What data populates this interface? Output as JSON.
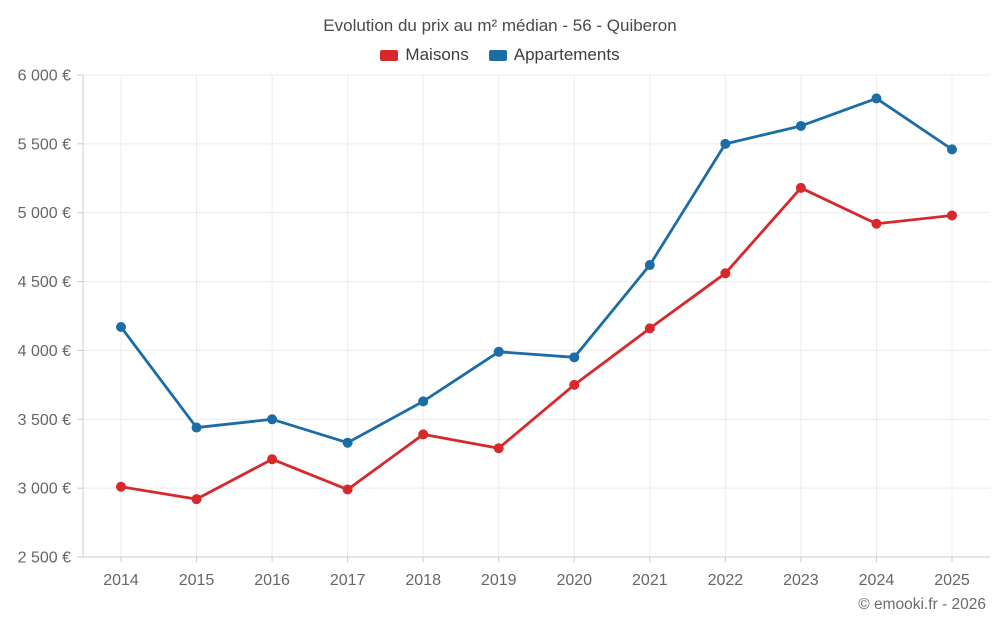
{
  "header": {
    "title": "Evolution du prix au m² médian - 56 - Quiberon"
  },
  "legend": {
    "items": [
      {
        "label": "Maisons",
        "color": "#d7292c"
      },
      {
        "label": "Appartements",
        "color": "#1b6da6"
      }
    ]
  },
  "footer": {
    "credit": "© emooki.fr - 2026"
  },
  "chart_data": {
    "type": "line",
    "title": "Evolution du prix au m² médian - 56 - Quiberon",
    "categories": [
      2014,
      2015,
      2016,
      2017,
      2018,
      2019,
      2020,
      2021,
      2022,
      2023,
      2024,
      2025
    ],
    "series": [
      {
        "name": "Maisons",
        "color": "#d7292c",
        "values": [
          3010,
          2920,
          3210,
          2990,
          3390,
          3290,
          3750,
          4160,
          4560,
          5180,
          4920,
          4980
        ]
      },
      {
        "name": "Appartements",
        "color": "#1b6da6",
        "values": [
          4170,
          3440,
          3500,
          3330,
          3630,
          3990,
          3950,
          4620,
          5500,
          5630,
          5830,
          5460
        ]
      }
    ],
    "xlabel": "",
    "ylabel": "",
    "ylim": [
      2500,
      6000
    ],
    "ytick_step": 500,
    "ytick_suffix": " €",
    "grid": true,
    "legend_position": "top",
    "colors": {
      "gridline": "#ececec",
      "axis": "#cccccc",
      "tick_label": "#666666"
    }
  }
}
